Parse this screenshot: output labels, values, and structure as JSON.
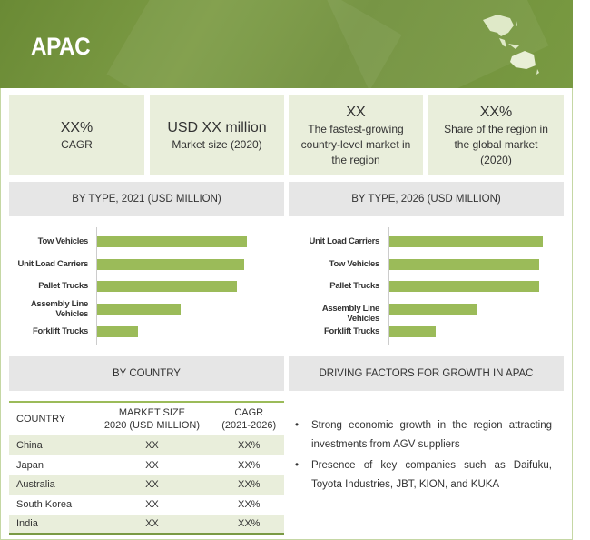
{
  "header": {
    "title": "APAC"
  },
  "kpis": [
    {
      "value": "XX%",
      "label": "CAGR"
    },
    {
      "value": "USD XX million",
      "label": "Market size (2020)"
    },
    {
      "value": "XX",
      "label": "The fastest-growing country-level market in the region"
    },
    {
      "value": "XX%",
      "label": "Share of the region in the global market (2020)"
    }
  ],
  "sections": {
    "by_type_2021": "BY TYPE, 2021 (USD MILLION)",
    "by_type_2026": "BY TYPE, 2026 (USD MILLION)",
    "by_country": "BY COUNTRY",
    "drivers": "DRIVING FACTORS FOR GROWTH IN APAC"
  },
  "chart_data": [
    {
      "type": "bar",
      "orientation": "horizontal",
      "title": "BY TYPE, 2021 (USD MILLION)",
      "categories": [
        "Tow Vehicles",
        "Unit Load Carriers",
        "Pallet Trucks",
        "Assembly Line Vehicles",
        "Forklift Trucks"
      ],
      "values": [
        165,
        162,
        154,
        92,
        45
      ],
      "units": "relative (no axis values shown)",
      "color": "#9bbb59"
    },
    {
      "type": "bar",
      "orientation": "horizontal",
      "title": "BY TYPE, 2026 (USD MILLION)",
      "categories": [
        "Unit Load Carriers",
        "Tow Vehicles",
        "Pallet Trucks",
        "Assembly Line Vehicles",
        "Forklift Trucks"
      ],
      "values": [
        169,
        165,
        165,
        97,
        51
      ],
      "units": "relative (no axis values shown)",
      "color": "#9bbb59"
    }
  ],
  "table": {
    "headers": [
      "COUNTRY",
      "MARKET SIZE\n2020 (USD MILLION)",
      "CAGR\n(2021-2026)"
    ],
    "rows": [
      [
        "China",
        "XX",
        "XX%"
      ],
      [
        "Japan",
        "XX",
        "XX%"
      ],
      [
        "Australia",
        "XX",
        "XX%"
      ],
      [
        "South Korea",
        "XX",
        "XX%"
      ],
      [
        "India",
        "XX",
        "XX%"
      ]
    ]
  },
  "drivers": [
    "Strong economic growth in the region attracting investments from AGV suppliers",
    "Presence of key companies such as Daifuku, Toyota Industries, JBT, KION, and KUKA"
  ],
  "bullet": "•"
}
